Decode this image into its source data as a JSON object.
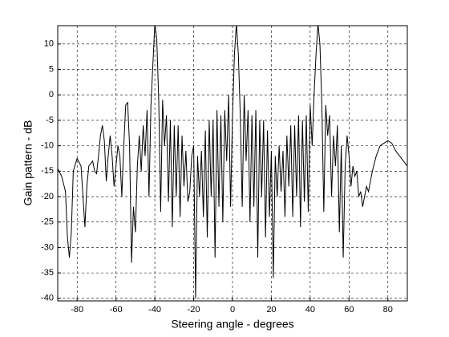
{
  "chart_data": {
    "type": "line",
    "xlabel": "Steering angle - degrees",
    "ylabel": "Gain pattern - dB",
    "xlim": [
      -90,
      90
    ],
    "ylim": [
      -40.5,
      13.6
    ],
    "xticks": [
      -80,
      -60,
      -40,
      -20,
      0,
      20,
      40,
      60,
      80
    ],
    "yticks": [
      10,
      5,
      0,
      -5,
      -10,
      -15,
      -20,
      -25,
      -30,
      -35,
      -40
    ],
    "grid": true,
    "x": [
      -90,
      -88,
      -86,
      -85,
      -84,
      -83,
      -82,
      -80,
      -78,
      -77,
      -76,
      -75,
      -74,
      -72,
      -71,
      -70,
      -69,
      -68,
      -67,
      -66,
      -65,
      -64,
      -63,
      -62,
      -61,
      -60,
      -59,
      -58,
      -57,
      -56,
      -55,
      -54,
      -53,
      -52,
      -51,
      -50,
      -49,
      -48,
      -47,
      -46,
      -45,
      -44,
      -43,
      -42,
      -41,
      -40,
      -39,
      -38,
      -37,
      -36,
      -35,
      -34,
      -33,
      -32,
      -31,
      -30,
      -29,
      -28,
      -27,
      -26,
      -25,
      -24,
      -23,
      -22,
      -21,
      -20,
      -19,
      -18,
      -17,
      -16,
      -15,
      -14,
      -13,
      -12,
      -11,
      -10,
      -9,
      -8,
      -7,
      -6,
      -5,
      -4,
      -3,
      -2,
      -1,
      0,
      1,
      2,
      3,
      4,
      5,
      6,
      7,
      8,
      9,
      10,
      11,
      12,
      13,
      14,
      15,
      16,
      17,
      18,
      19,
      20,
      21,
      22,
      23,
      24,
      25,
      26,
      27,
      28,
      29,
      30,
      31,
      32,
      33,
      34,
      35,
      36,
      37,
      38,
      39,
      40,
      41,
      42,
      43,
      44,
      45,
      46,
      47,
      48,
      49,
      50,
      51,
      52,
      53,
      54,
      55,
      56,
      57,
      58,
      59,
      60,
      61,
      62,
      63,
      64,
      65,
      66,
      67,
      68,
      69,
      70,
      72,
      74,
      76,
      78,
      80,
      82,
      84,
      86,
      88,
      90
    ],
    "series": [
      {
        "color": "#000000",
        "values": [
          -14.5,
          -16,
          -19,
          -28,
          -32,
          -27,
          -15,
          -12.5,
          -14,
          -20,
          -26,
          -18,
          -14,
          -13,
          -15,
          -15.5,
          -12,
          -8,
          -6,
          -9,
          -17,
          -12,
          -8,
          -12,
          -18,
          -14,
          -10,
          -12,
          -20,
          -10,
          -2,
          -1.5,
          -10,
          -33,
          -22,
          -27,
          -14,
          -8,
          -15,
          -6,
          -12,
          -3,
          -20,
          -2,
          6,
          14,
          11,
          -1,
          -23,
          -1,
          -10,
          -4,
          -21,
          -5,
          -26,
          -6,
          -20,
          -6,
          -24,
          -8,
          -18,
          -11,
          -21,
          -19,
          -12,
          -10,
          -40,
          -12,
          -20,
          -11,
          -24,
          -7,
          -28,
          -5,
          -20,
          -5,
          -32,
          -3,
          -22,
          -4,
          -25,
          -3,
          -13,
          0,
          -22,
          -4,
          8,
          14,
          8,
          -4,
          -22,
          0,
          -13,
          -3,
          -25,
          -4,
          -22,
          -3,
          -32,
          -5,
          -20,
          -5,
          -28,
          -7,
          -24,
          -11,
          -36,
          -12,
          -20,
          -10,
          -19,
          -11,
          -24,
          -8,
          -18,
          -6,
          -24,
          -6,
          -20,
          -4,
          -26,
          -5,
          -21,
          -4,
          -23,
          -2,
          -10,
          0,
          8,
          14,
          10,
          -2,
          -23,
          -2,
          -8,
          -4,
          -20,
          -8,
          -14,
          -6,
          -27,
          -10,
          -32,
          -14,
          -8,
          -12,
          -18,
          -14,
          -16,
          -15,
          -20,
          -19,
          -22,
          -20,
          -18,
          -19,
          -15,
          -12,
          -10,
          -9.5,
          -9,
          -9.5,
          -11,
          -12,
          -13,
          -14
        ]
      }
    ]
  }
}
